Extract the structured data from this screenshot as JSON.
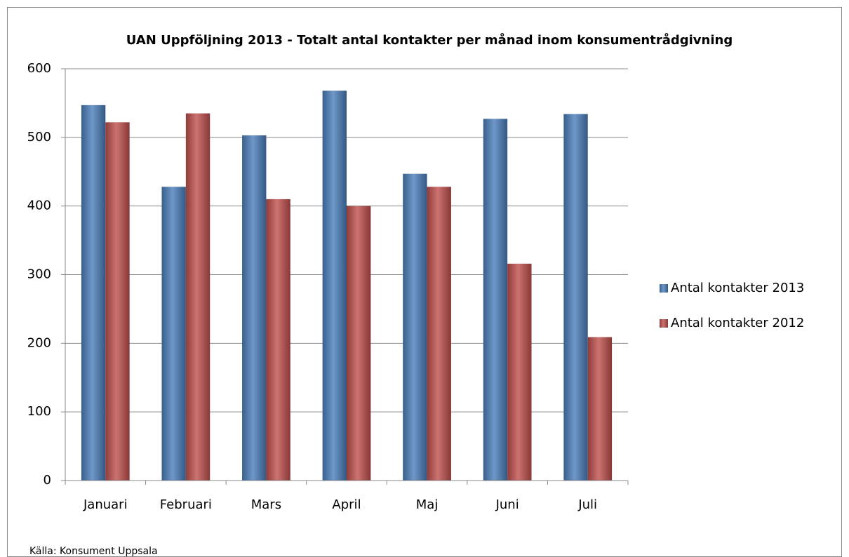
{
  "chart_data": {
    "type": "bar",
    "title": "UAN Uppföljning 2013 - Totalt antal kontakter per månad inom konsumentrådgivning",
    "categories": [
      "Januari",
      "Februari",
      "Mars",
      "April",
      "Maj",
      "Juni",
      "Juli"
    ],
    "series": [
      {
        "name": "Antal kontakter 2013",
        "color": "#4a7ebb",
        "values": [
          547,
          428,
          503,
          568,
          447,
          527,
          534
        ]
      },
      {
        "name": "Antal kontakter 2012",
        "color": "#c0504d",
        "values": [
          522,
          535,
          410,
          400,
          428,
          316,
          209
        ]
      }
    ],
    "ylim": [
      0,
      600
    ],
    "yticks": [
      0,
      100,
      200,
      300,
      400,
      500,
      600
    ],
    "grid": true,
    "legend": "right",
    "source": "Källa: Konsument Uppsala"
  }
}
